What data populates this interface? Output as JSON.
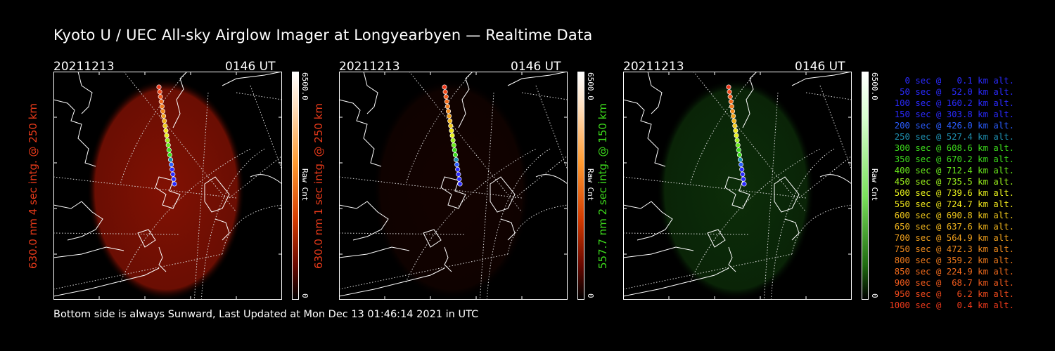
{
  "title": "Kyoto U / UEC All-sky Airglow Imager at Longyearbyen — Realtime Data",
  "footer": "Bottom side is always Sunward, Last Updated at Mon Dec 13 01:46:14 2021 in UTC",
  "colors": {
    "red_channel": "#cc1a00",
    "green_channel": "#3ddc1c",
    "legend_palette": [
      "#2a2aff",
      "#2a2aff",
      "#2a2aff",
      "#2a2aff",
      "#2a5cff",
      "#1e8fb0",
      "#3ddc1c",
      "#3ddc1c",
      "#6aea1c",
      "#9af01c",
      "#e6f01c",
      "#f0e61c",
      "#f0c81c",
      "#f0b41c",
      "#f0a01c",
      "#f08a1c",
      "#f07a1c",
      "#f06a1c",
      "#f05a1c",
      "#f04a1c",
      "#f03a1c"
    ]
  },
  "panels": [
    {
      "date": "20211213",
      "time": "0146 UT",
      "ylabel": "630.0 nm 4 sec intg. @ 250 km",
      "ylabel_color": "#e83a1a",
      "colorbar_max": "6500.0",
      "colorbar_min": "0",
      "colorbar_unit": "Raw Cnt",
      "image_intensity": 0.8,
      "image_hue": "red"
    },
    {
      "date": "20211213",
      "time": "0146 UT",
      "ylabel": "630.0 nm 1 sec intg. @ 250 km",
      "ylabel_color": "#e83a1a",
      "colorbar_max": "6500.0",
      "colorbar_min": "0",
      "colorbar_unit": "Raw Cnt",
      "image_intensity": 0.12,
      "image_hue": "red"
    },
    {
      "date": "20211213",
      "time": "0146 UT",
      "ylabel": "557.7 nm 2 sec intg. @ 150 km",
      "ylabel_color": "#3ddc1c",
      "colorbar_max": "6500.0",
      "colorbar_min": "0",
      "colorbar_unit": "Raw Cnt",
      "image_intensity": 0.35,
      "image_hue": "green"
    }
  ],
  "legend": [
    "0 sec @   0.1 km alt.",
    "50 sec @  52.0 km alt.",
    "100 sec @ 160.2 km alt.",
    "150 sec @ 303.8 km alt.",
    "200 sec @ 426.0 km alt.",
    "250 sec @ 527.4 km alt.",
    "300 sec @ 608.6 km alt.",
    "350 sec @ 670.2 km alt.",
    "400 sec @ 712.4 km alt.",
    "450 sec @ 735.5 km alt.",
    "500 sec @ 739.6 km alt.",
    "550 sec @ 724.7 km alt.",
    "600 sec @ 690.8 km alt.",
    "650 sec @ 637.6 km alt.",
    "700 sec @ 564.9 km alt.",
    "750 sec @ 472.3 km alt.",
    "800 sec @ 359.2 km alt.",
    "850 sec @ 224.9 km alt.",
    "900 sec @  68.7 km alt.",
    "950 sec @   6.2 km alt.",
    "1000 sec @   0.4 km alt."
  ],
  "chart_data": {
    "type": "scatter",
    "series": [
      {
        "x": [
          0,
          50,
          100,
          150,
          200,
          250,
          300,
          350,
          400,
          450,
          500,
          550,
          600,
          650,
          700,
          750,
          800,
          850,
          900,
          950,
          1000
        ],
        "y": [
          0.1,
          52.0,
          160.2,
          303.8,
          426.0,
          527.4,
          608.6,
          670.2,
          712.4,
          735.5,
          739.6,
          724.7,
          690.8,
          637.6,
          564.9,
          472.3,
          359.2,
          224.9,
          68.7,
          6.2,
          0.4
        ]
      }
    ]
  }
}
